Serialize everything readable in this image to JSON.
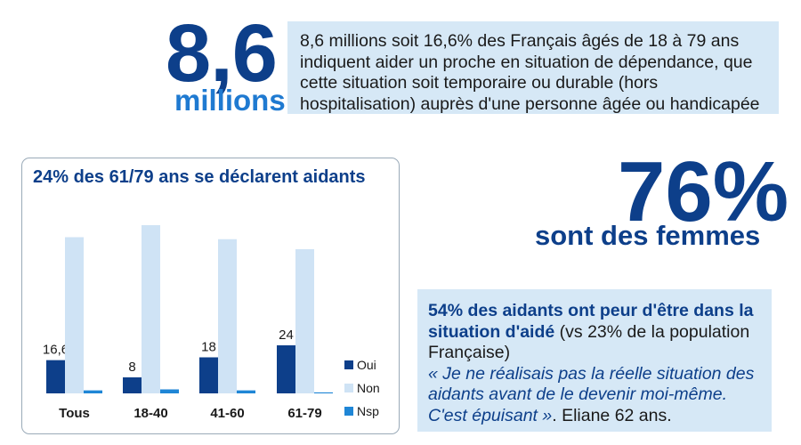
{
  "headline": {
    "number": "8,6",
    "unit": "millions",
    "description": "8,6 millions soit 16,6% des Français âgés de 18 à 79 ans indiquent aider un proche en situation de dépendance, que cette situation soit temporaire ou durable (hors hospitalisation) auprès d'une personne âgée ou handicapée"
  },
  "women": {
    "percent": "76%",
    "caption": "sont des femmes"
  },
  "fear": {
    "strong": "54% des aidants ont peur d'être dans la situation d'aidé",
    "normal": " (vs 23% de la population Française)",
    "quote": "« Je ne réalisais pas la réelle situation des aidants avant de le devenir moi-même. C'est épuisant »",
    "author": ". Eliane 62 ans."
  },
  "colors": {
    "dark_blue": "#0d3f8a",
    "light_blue": "#cfe3f5",
    "mid_blue": "#1f86d6",
    "panel_bg": "#d6e8f6"
  },
  "chart_data": {
    "type": "bar",
    "title": "24% des 61/79 ans se déclarent aidants",
    "categories": [
      "Tous",
      "18-40",
      "41-60",
      "61-79"
    ],
    "series": [
      {
        "name": "Oui",
        "values": [
          16.6,
          8,
          18,
          24
        ],
        "labels": [
          "16,6",
          "8",
          "18",
          "24"
        ],
        "color": "#0d3f8a"
      },
      {
        "name": "Non",
        "values": [
          78,
          84,
          77,
          72
        ],
        "color": "#cfe3f5"
      },
      {
        "name": "Nsp",
        "values": [
          1.5,
          2,
          1.5,
          0.5
        ],
        "color": "#1f86d6"
      }
    ],
    "ylim": [
      0,
      100
    ],
    "legend": "right",
    "grid": false,
    "xlabel": "",
    "ylabel": ""
  }
}
